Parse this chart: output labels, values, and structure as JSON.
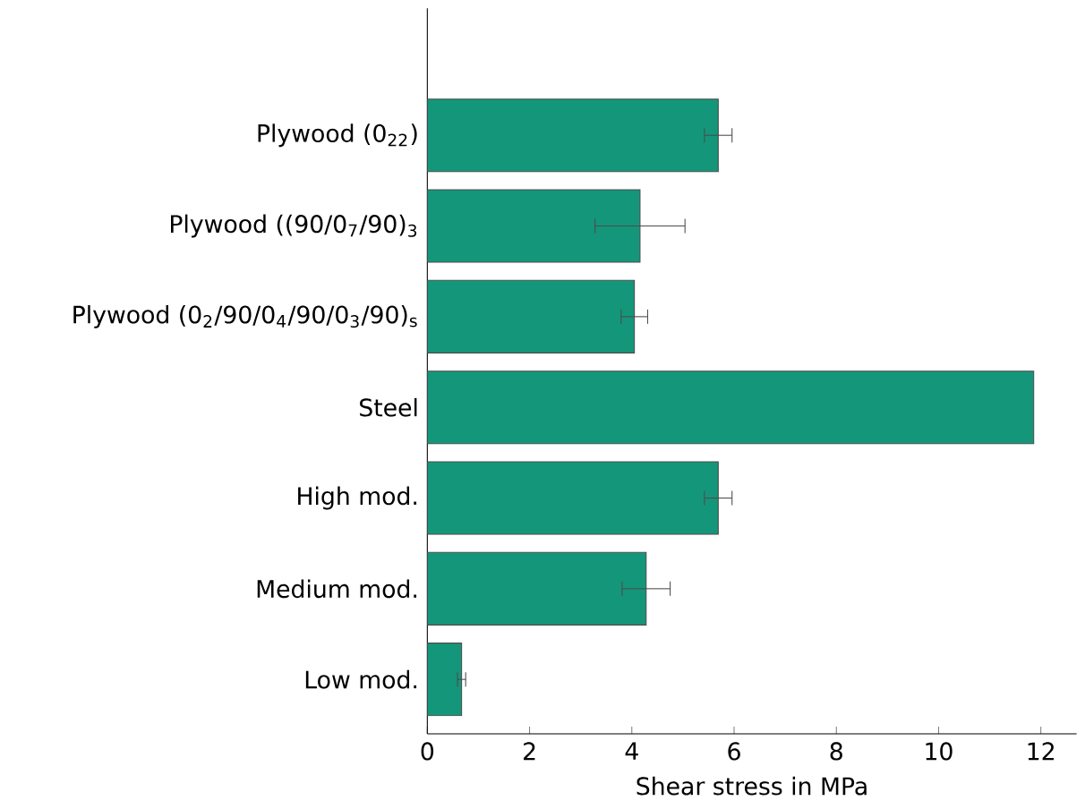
{
  "chart_data": {
    "type": "bar",
    "orientation": "horizontal",
    "xlabel": "Shear stress in MPa",
    "categories": [
      "Plywood (0$_{22}$)",
      "Plywood ((90/0$_{7}$/90)$_{3}$",
      "Plywood (0$_{2}$/90/0$_{4}$/90/0$_{3}$/90)$_{s}$",
      "Steel",
      "High mod.",
      "Medium mod.",
      "Low mod."
    ],
    "values": [
      5.69,
      4.16,
      4.05,
      11.86,
      5.69,
      4.28,
      0.67
    ],
    "errors": [
      0.27,
      0.88,
      0.26,
      null,
      0.27,
      0.47,
      0.08
    ],
    "color": "#14967a",
    "xlim": [
      0,
      12.7
    ],
    "xticks": [
      0,
      2,
      4,
      6,
      8,
      10,
      12
    ]
  }
}
